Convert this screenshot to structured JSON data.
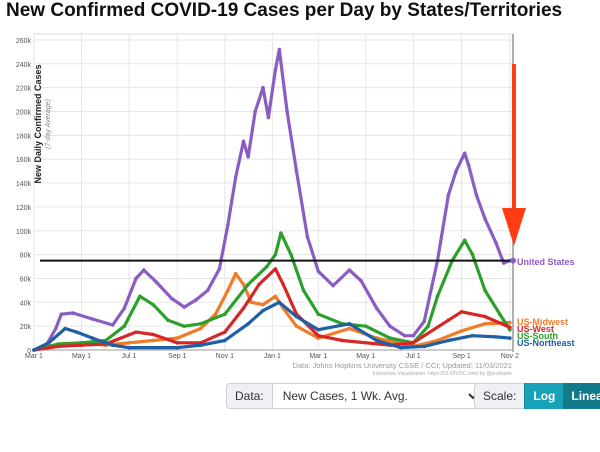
{
  "title": "New Confirmed COVID-19 Cases per Day by States/Territories",
  "controls": {
    "data_label": "Data:",
    "data_value": "New Cases, 1 Wk. Avg.",
    "scale_label": "Scale:",
    "log_label": "Log",
    "linear_label": "Linear"
  },
  "chart_data": {
    "type": "line",
    "ylabel": "New Daily Confirmed Cases",
    "ylabel_sub": "(7-day Average)",
    "yticks": [
      "0",
      "20k",
      "40k",
      "60k",
      "80k",
      "100k",
      "120k",
      "140k",
      "160k",
      "180k",
      "200k",
      "220k",
      "240k",
      "260k"
    ],
    "ylim": [
      0,
      265000
    ],
    "xticks": [
      "Mar 1",
      "May 1",
      "Jul 1",
      "Sep 1",
      "Nov 1",
      "Jan 1",
      "Mar 1",
      "May 1",
      "Jul 1",
      "Sep 1",
      "Nov 2"
    ],
    "xtick_dates": [
      "2020-03-01",
      "2020-05-01",
      "2020-07-01",
      "2020-09-01",
      "2020-11-01",
      "2021-01-01",
      "2021-03-01",
      "2021-05-01",
      "2021-07-01",
      "2021-09-01",
      "2021-11-02"
    ],
    "xlim": [
      "2020-03-01",
      "2021-11-06"
    ],
    "reference_line_y": 75000,
    "grid": true,
    "source_text": "Data: Johns Hopkins University CSSE / CCI; Updated: 11/03/2021",
    "viz_text": "Interactive Visualization: https://91-DIVOC.com/ by @profwade",
    "series": [
      {
        "name": "United States",
        "color": "#8b5cc2",
        "points": [
          [
            "2020-03-01",
            0
          ],
          [
            "2020-03-15",
            2000
          ],
          [
            "2020-03-29",
            18000
          ],
          [
            "2020-04-05",
            30000
          ],
          [
            "2020-04-20",
            31000
          ],
          [
            "2020-05-15",
            26000
          ],
          [
            "2020-06-10",
            21000
          ],
          [
            "2020-06-25",
            35000
          ],
          [
            "2020-07-10",
            60000
          ],
          [
            "2020-07-20",
            67000
          ],
          [
            "2020-08-05",
            57000
          ],
          [
            "2020-08-25",
            43000
          ],
          [
            "2020-09-10",
            36000
          ],
          [
            "2020-09-25",
            42000
          ],
          [
            "2020-10-10",
            50000
          ],
          [
            "2020-10-25",
            68000
          ],
          [
            "2020-11-05",
            105000
          ],
          [
            "2020-11-15",
            145000
          ],
          [
            "2020-11-25",
            175000
          ],
          [
            "2020-12-01",
            162000
          ],
          [
            "2020-12-10",
            200000
          ],
          [
            "2020-12-20",
            220000
          ],
          [
            "2020-12-27",
            195000
          ],
          [
            "2021-01-05",
            235000
          ],
          [
            "2021-01-10",
            252000
          ],
          [
            "2021-01-20",
            200000
          ],
          [
            "2021-02-01",
            150000
          ],
          [
            "2021-02-15",
            95000
          ],
          [
            "2021-03-01",
            66000
          ],
          [
            "2021-03-20",
            54000
          ],
          [
            "2021-04-10",
            67000
          ],
          [
            "2021-04-25",
            58000
          ],
          [
            "2021-05-15",
            35000
          ],
          [
            "2021-06-01",
            20000
          ],
          [
            "2021-06-20",
            12000
          ],
          [
            "2021-07-01",
            12000
          ],
          [
            "2021-07-15",
            24000
          ],
          [
            "2021-08-01",
            75000
          ],
          [
            "2021-08-15",
            130000
          ],
          [
            "2021-08-25",
            150000
          ],
          [
            "2021-09-05",
            165000
          ],
          [
            "2021-09-10",
            155000
          ],
          [
            "2021-09-20",
            130000
          ],
          [
            "2021-10-01",
            110000
          ],
          [
            "2021-10-15",
            90000
          ],
          [
            "2021-10-25",
            73000
          ],
          [
            "2021-11-02",
            75000
          ]
        ]
      },
      {
        "name": "US-Midwest",
        "color": "#f07c28",
        "points": [
          [
            "2020-03-01",
            0
          ],
          [
            "2020-04-01",
            4000
          ],
          [
            "2020-05-01",
            6000
          ],
          [
            "2020-06-01",
            4000
          ],
          [
            "2020-07-01",
            6000
          ],
          [
            "2020-08-01",
            8000
          ],
          [
            "2020-09-01",
            10000
          ],
          [
            "2020-10-01",
            18000
          ],
          [
            "2020-10-20",
            30000
          ],
          [
            "2020-11-05",
            50000
          ],
          [
            "2020-11-15",
            64000
          ],
          [
            "2020-11-25",
            55000
          ],
          [
            "2020-12-05",
            40000
          ],
          [
            "2020-12-20",
            38000
          ],
          [
            "2021-01-05",
            45000
          ],
          [
            "2021-01-15",
            35000
          ],
          [
            "2021-02-01",
            20000
          ],
          [
            "2021-03-01",
            10000
          ],
          [
            "2021-04-10",
            18000
          ],
          [
            "2021-05-15",
            10000
          ],
          [
            "2021-07-01",
            3000
          ],
          [
            "2021-08-01",
            8000
          ],
          [
            "2021-09-01",
            16000
          ],
          [
            "2021-10-01",
            22000
          ],
          [
            "2021-11-02",
            23000
          ]
        ]
      },
      {
        "name": "US-West",
        "color": "#d62728",
        "points": [
          [
            "2020-03-01",
            0
          ],
          [
            "2020-04-01",
            3000
          ],
          [
            "2020-05-01",
            4000
          ],
          [
            "2020-06-01",
            5000
          ],
          [
            "2020-07-10",
            15000
          ],
          [
            "2020-08-01",
            13000
          ],
          [
            "2020-09-01",
            6000
          ],
          [
            "2020-10-01",
            6000
          ],
          [
            "2020-11-01",
            15000
          ],
          [
            "2020-11-25",
            35000
          ],
          [
            "2020-12-15",
            55000
          ],
          [
            "2021-01-05",
            68000
          ],
          [
            "2021-01-15",
            55000
          ],
          [
            "2021-02-01",
            30000
          ],
          [
            "2021-03-01",
            12000
          ],
          [
            "2021-04-01",
            8000
          ],
          [
            "2021-06-01",
            4000
          ],
          [
            "2021-07-01",
            6000
          ],
          [
            "2021-08-15",
            25000
          ],
          [
            "2021-09-01",
            32000
          ],
          [
            "2021-10-01",
            28000
          ],
          [
            "2021-11-02",
            19000
          ]
        ]
      },
      {
        "name": "US-South",
        "color": "#2ca02c",
        "points": [
          [
            "2020-03-01",
            0
          ],
          [
            "2020-04-01",
            5000
          ],
          [
            "2020-05-01",
            6000
          ],
          [
            "2020-06-01",
            8000
          ],
          [
            "2020-06-25",
            20000
          ],
          [
            "2020-07-15",
            45000
          ],
          [
            "2020-08-01",
            38000
          ],
          [
            "2020-08-20",
            25000
          ],
          [
            "2020-09-10",
            20000
          ],
          [
            "2020-10-01",
            22000
          ],
          [
            "2020-11-01",
            30000
          ],
          [
            "2020-12-01",
            55000
          ],
          [
            "2020-12-25",
            70000
          ],
          [
            "2021-01-05",
            80000
          ],
          [
            "2021-01-12",
            98000
          ],
          [
            "2021-01-25",
            80000
          ],
          [
            "2021-02-10",
            50000
          ],
          [
            "2021-03-01",
            30000
          ],
          [
            "2021-04-01",
            22000
          ],
          [
            "2021-05-01",
            20000
          ],
          [
            "2021-06-01",
            10000
          ],
          [
            "2021-07-01",
            6000
          ],
          [
            "2021-07-20",
            20000
          ],
          [
            "2021-08-01",
            45000
          ],
          [
            "2021-08-20",
            75000
          ],
          [
            "2021-09-05",
            92000
          ],
          [
            "2021-09-15",
            80000
          ],
          [
            "2021-10-01",
            50000
          ],
          [
            "2021-10-20",
            30000
          ],
          [
            "2021-11-02",
            17000
          ]
        ]
      },
      {
        "name": "US-Northeast",
        "color": "#1f5fa5",
        "points": [
          [
            "2020-03-01",
            0
          ],
          [
            "2020-03-20",
            6000
          ],
          [
            "2020-04-10",
            18000
          ],
          [
            "2020-04-25",
            15000
          ],
          [
            "2020-05-15",
            10000
          ],
          [
            "2020-06-10",
            4000
          ],
          [
            "2020-07-01",
            2000
          ],
          [
            "2020-09-01",
            2000
          ],
          [
            "2020-10-01",
            4000
          ],
          [
            "2020-11-01",
            8000
          ],
          [
            "2020-12-01",
            22000
          ],
          [
            "2020-12-20",
            33000
          ],
          [
            "2021-01-10",
            40000
          ],
          [
            "2021-02-01",
            28000
          ],
          [
            "2021-03-01",
            17000
          ],
          [
            "2021-04-10",
            22000
          ],
          [
            "2021-05-15",
            8000
          ],
          [
            "2021-06-15",
            2000
          ],
          [
            "2021-07-15",
            3000
          ],
          [
            "2021-08-15",
            8000
          ],
          [
            "2021-09-15",
            12000
          ],
          [
            "2021-10-15",
            11000
          ],
          [
            "2021-11-02",
            10000
          ]
        ]
      }
    ],
    "annotations": [
      {
        "text": "United States",
        "color": "#8b5cc2"
      },
      {
        "text": "US-Midwest",
        "color": "#f07c28"
      },
      {
        "text": "US-West",
        "color": "#d62728"
      },
      {
        "text": "US-South",
        "color": "#2ca02c"
      },
      {
        "text": "US-Northeast",
        "color": "#1f5fa5"
      }
    ],
    "arrow_color": "#ff3d12"
  }
}
